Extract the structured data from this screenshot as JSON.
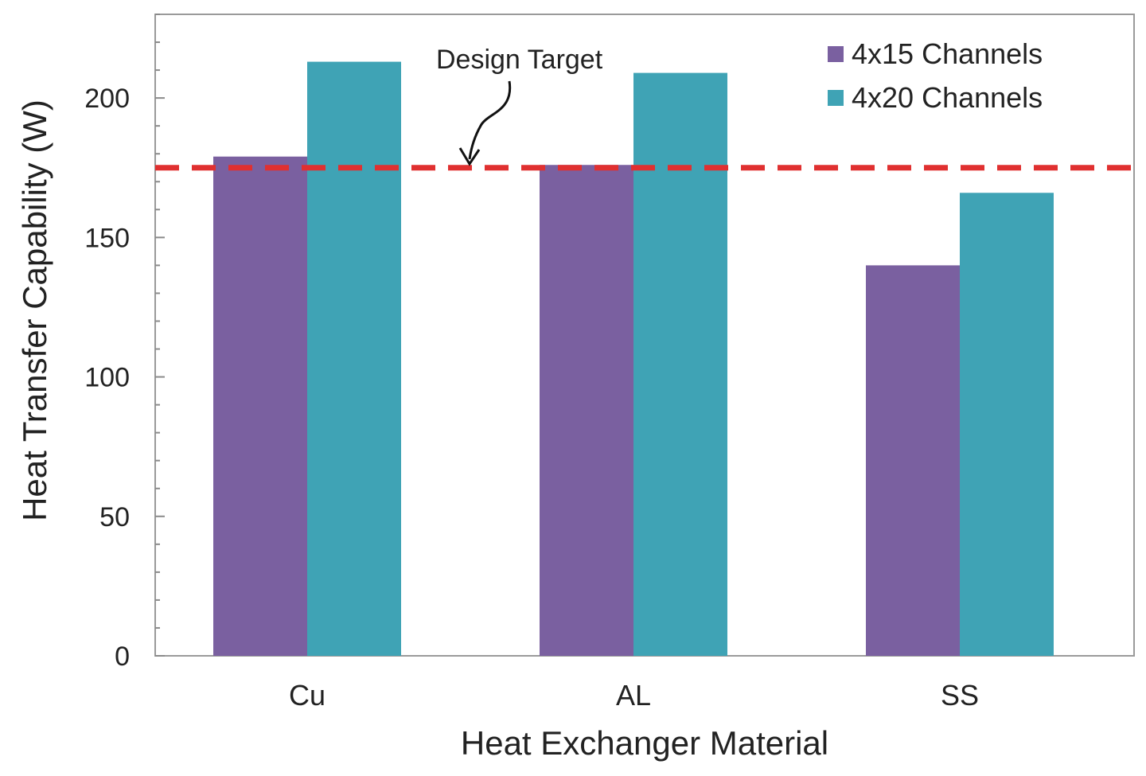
{
  "chart_data": {
    "type": "bar",
    "title": "",
    "xlabel": "Heat Exchanger Material",
    "ylabel": "Heat Transfer Capability (W)",
    "categories": [
      "Cu",
      "AL",
      "SS"
    ],
    "series": [
      {
        "name": "4x15 Channels",
        "values": [
          179,
          176,
          140
        ],
        "color": "#7a60a0"
      },
      {
        "name": "4x20 Channels",
        "values": [
          213,
          209,
          166
        ],
        "color": "#3fa3b5"
      }
    ],
    "ylim": [
      0,
      230
    ],
    "yticks": [
      0,
      50,
      100,
      150,
      200
    ],
    "grid": false,
    "legend_position": "top-right",
    "reference_line": {
      "label": "Design Target",
      "value": 175,
      "color": "#e03030",
      "style": "dashed"
    }
  }
}
